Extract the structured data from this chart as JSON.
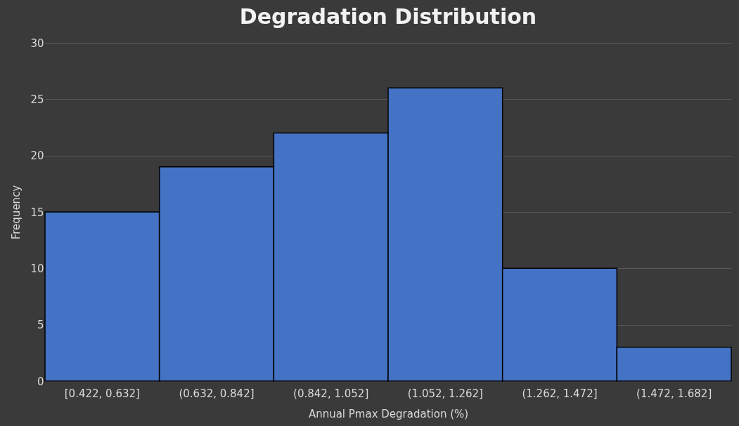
{
  "chart_data": {
    "type": "bar",
    "title": "Degradation Distribution",
    "xlabel": "Annual Pmax Degradation (%)",
    "ylabel": "Frequency",
    "categories": [
      "[0.422, 0.632]",
      "(0.632, 0.842]",
      "(0.842, 1.052]",
      "(1.052, 1.262]",
      "(1.262, 1.472]",
      "(1.472, 1.682]"
    ],
    "values": [
      15,
      19,
      22,
      26,
      10,
      3
    ],
    "color": "#4472c4",
    "ylim": [
      0,
      30
    ],
    "yticks": [
      0,
      5,
      10,
      15,
      20,
      25,
      30
    ],
    "grid": "y"
  }
}
